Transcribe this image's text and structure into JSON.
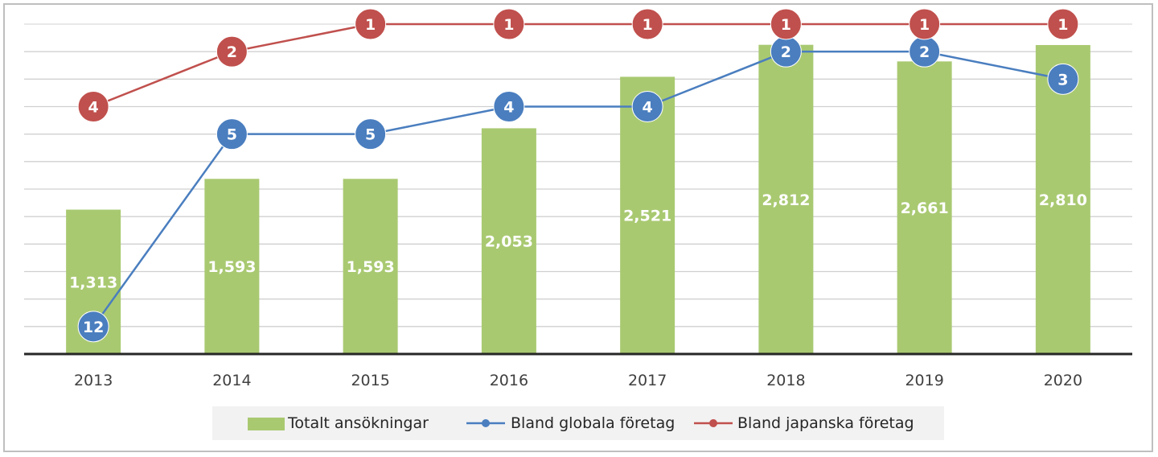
{
  "chart_data": {
    "type": "bar",
    "categories": [
      "2013",
      "2014",
      "2015",
      "2016",
      "2017",
      "2018",
      "2019",
      "2020"
    ],
    "bars": {
      "name": "Totalt ansökningar",
      "values": [
        1313,
        1593,
        1593,
        2053,
        2521,
        2812,
        2661,
        2810
      ],
      "labels": [
        "1,313",
        "1,593",
        "1,593",
        "2,053",
        "2,521",
        "2,812",
        "2,661",
        "2,810"
      ],
      "color": "#a9c971"
    },
    "series": [
      {
        "name": "Bland globala företag",
        "type": "line",
        "values": [
          12,
          5,
          5,
          4,
          4,
          2,
          2,
          3
        ],
        "color": "#4a7ebf"
      },
      {
        "name": "Bland japanska företag",
        "type": "line",
        "values": [
          4,
          2,
          1,
          1,
          1,
          1,
          1,
          1
        ],
        "color": "#c0504d"
      }
    ],
    "ylim": [
      0,
      3000
    ],
    "rank_axis": {
      "min": 1,
      "max": 13,
      "reversed": true
    },
    "grid": true,
    "legend": "bottom"
  }
}
